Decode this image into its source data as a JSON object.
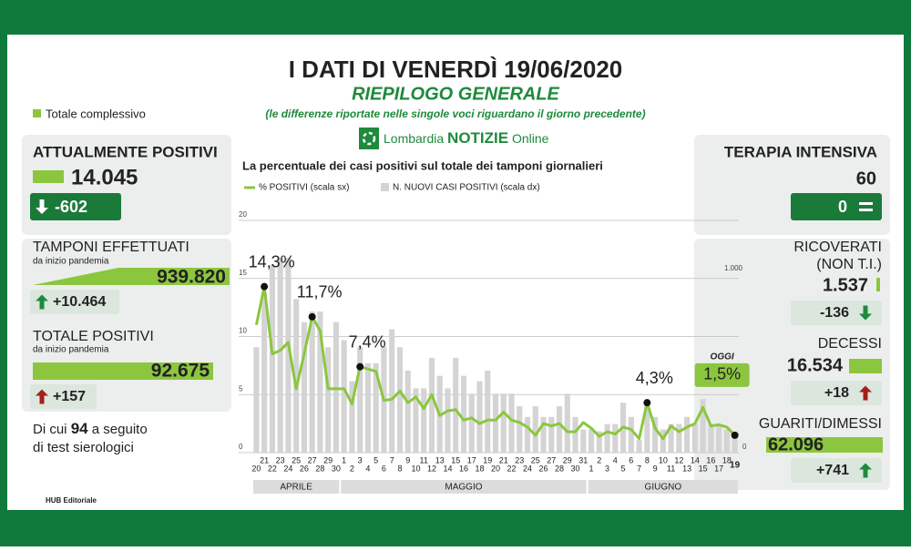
{
  "header": {
    "title": "I DATI DI VENERDÌ 19/06/2020",
    "subtitle": "RIEPILOGO GENERALE",
    "note": "(le differenze riportate nelle singole voci riguardano il giorno precedente)",
    "legend": "Totale complessivo",
    "logo_name": "Lombardia",
    "logo_brand": "NOTIZIE",
    "logo_suffix": "Online"
  },
  "left": [
    {
      "label": "ATTUALMENTE POSITIVI",
      "value": "14.045",
      "change": "-602"
    },
    {
      "label": "TAMPONI EFFETTUATI",
      "sublabel": "da inizio pandemia",
      "value": "939.820",
      "change": "+10.464"
    },
    {
      "label": "TOTALE POSITIVI",
      "sublabel": "da inizio pandemia",
      "value": "92.675",
      "change": "+157"
    }
  ],
  "serology": {
    "prefix": "Di cui",
    "number": "94",
    "suffix": "a seguito",
    "line2": "di test sierologici"
  },
  "right": [
    {
      "label": "TERAPIA INTENSIVA",
      "value": "60",
      "change": "0"
    },
    {
      "label": "RICOVERATI",
      "sublabel": "(NON T.I.)",
      "value": "1.537",
      "change": "-136"
    },
    {
      "label": "DECESSI",
      "value": "16.534",
      "change": "+18"
    },
    {
      "label": "GUARITI/DIMESSI",
      "value": "62.096",
      "change": "+741"
    }
  ],
  "footer": "HUB Editoriale",
  "chart_data": {
    "type": "line",
    "title": "La percentuale dei casi positivi sul totale dei tamponi giornalieri",
    "categories": [
      "20",
      "21",
      "22",
      "23",
      "24",
      "25",
      "26",
      "27",
      "28",
      "29",
      "30",
      "1",
      "2",
      "3",
      "4",
      "5",
      "6",
      "7",
      "8",
      "9",
      "10",
      "11",
      "12",
      "13",
      "14",
      "15",
      "16",
      "17",
      "18",
      "19",
      "20",
      "21",
      "22",
      "23",
      "24",
      "25",
      "26",
      "27",
      "28",
      "29",
      "30",
      "31",
      "1",
      "2",
      "3",
      "4",
      "5",
      "6",
      "7",
      "8",
      "9",
      "10",
      "11",
      "12",
      "13",
      "14",
      "15",
      "16",
      "17",
      "18",
      "19"
    ],
    "months": [
      "APRILE",
      "MAGGIO",
      "GIUGNO"
    ],
    "series": [
      {
        "name": "% POSITIVI (scala sx)",
        "type": "line",
        "color": "#8cc63f",
        "values": [
          11,
          14.3,
          8.5,
          8.8,
          9.5,
          5.5,
          8.5,
          11.7,
          10.5,
          5.5,
          5.5,
          5.5,
          4.2,
          7.4,
          7.2,
          7.0,
          4.5,
          4.6,
          5.3,
          4.3,
          4.8,
          3.8,
          5.0,
          3.2,
          3.6,
          3.7,
          2.8,
          3.0,
          2.5,
          2.8,
          2.8,
          3.5,
          2.8,
          2.6,
          2.2,
          1.5,
          2.5,
          2.3,
          2.5,
          1.8,
          1.8,
          2.6,
          2.1,
          1.4,
          1.8,
          1.6,
          2.2,
          2.0,
          1.2,
          4.3,
          2.1,
          1.2,
          2.3,
          1.8,
          2.2,
          2.5,
          3.9,
          2.3,
          2.4,
          2.2,
          1.5
        ],
        "value_labels": [
          null,
          "14,3%",
          null,
          null,
          null,
          null,
          null,
          "11,7%",
          null,
          null,
          null,
          null,
          null,
          "7,4%",
          null,
          null,
          null,
          null,
          null,
          null,
          null,
          null,
          null,
          null,
          null,
          null,
          null,
          null,
          null,
          null,
          null,
          null,
          null,
          null,
          null,
          null,
          null,
          null,
          null,
          null,
          null,
          null,
          null,
          null,
          null,
          null,
          null,
          null,
          null,
          "4,3%",
          null,
          null,
          null,
          null,
          null,
          null,
          null,
          null,
          null,
          null,
          "1,5%"
        ]
      },
      {
        "name": "N. NUOVI CASI POSITIVI (scala dx)",
        "type": "bar",
        "axis": "y2",
        "color": "#d4d4d4",
        "values": [
          590,
          890,
          1050,
          1090,
          1090,
          860,
          730,
          790,
          790,
          590,
          730,
          630,
          400,
          590,
          500,
          500,
          590,
          690,
          590,
          460,
          360,
          360,
          530,
          430,
          360,
          530,
          430,
          330,
          400,
          460,
          330,
          330,
          330,
          260,
          200,
          260,
          200,
          200,
          260,
          330,
          200,
          130,
          130,
          120,
          160,
          160,
          280,
          200,
          70,
          280,
          200,
          130,
          160,
          160,
          200,
          160,
          300,
          160,
          160,
          130,
          100
        ]
      }
    ],
    "annotation": "OGGI",
    "ylim": [
      0,
      20
    ],
    "yticks": [
      0,
      5,
      10,
      15,
      20
    ],
    "y2lim": [
      0,
      1300
    ],
    "y2ticks": [
      0,
      {
        "value": 1000,
        "label": "1.000"
      }
    ],
    "grid": true
  }
}
